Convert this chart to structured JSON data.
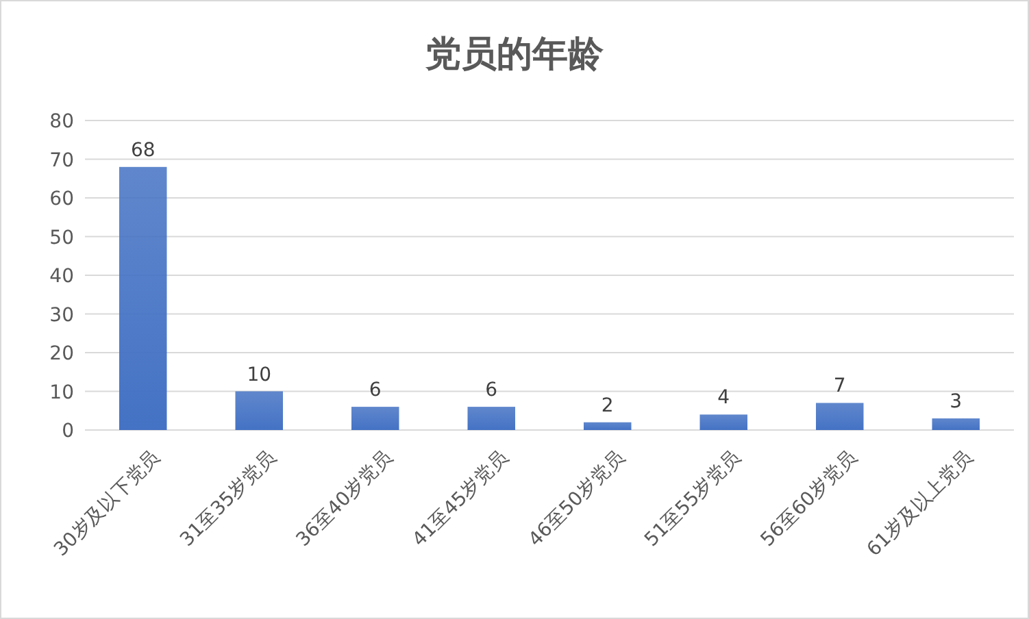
{
  "chart_data": {
    "type": "bar",
    "title": "党员的年龄",
    "categories": [
      "30岁及以下党员",
      "31至35岁党员",
      "36至40岁党员",
      "41至45岁党员",
      "46至50岁党员",
      "51至55岁党员",
      "56至60岁党员",
      "61岁及以上党员"
    ],
    "values": [
      68,
      10,
      6,
      6,
      2,
      4,
      7,
      3
    ],
    "color": "#4472c4",
    "ylim": [
      0,
      80
    ],
    "yticks": [
      0,
      10,
      20,
      30,
      40,
      50,
      60,
      70,
      80
    ],
    "grid": "y",
    "data_labels": true
  }
}
